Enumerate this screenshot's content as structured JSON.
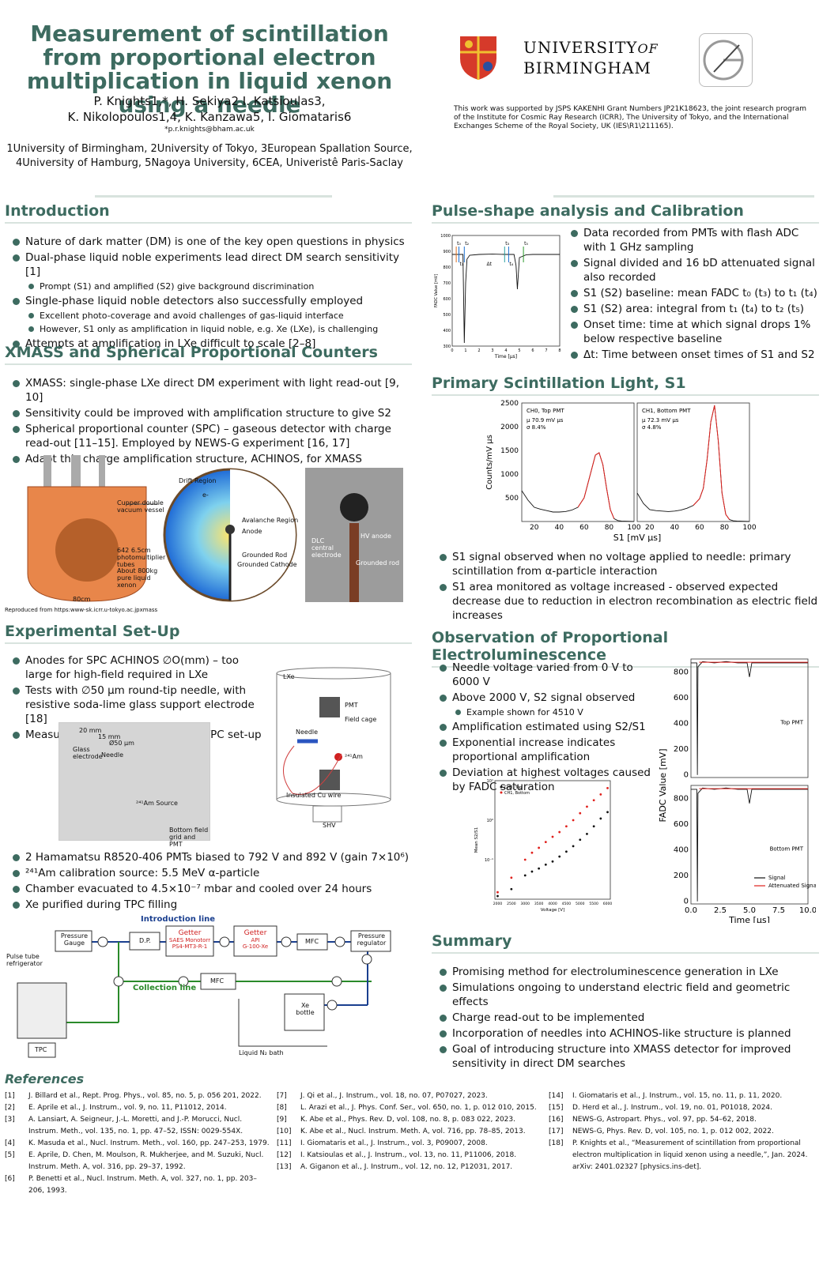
{
  "header": {
    "title": "Measurement of scintillation from proportional electron multiplication in liquid xenon using a needle",
    "authors_line1": "P. Knights1,*, H. Sekiya2 I. Katsioulas3,",
    "authors_line2": "K. Nikolopoulos1,4, K. Kanzawa5, I. Giomataris6",
    "email": "*p.r.knights@bham.ac.uk",
    "affil_line1": "1University of Birmingham, 2University of Tokyo, 3European Spallation Source,",
    "affil_line2": "4University of Hamburg, 5Nagoya University, 6CEA, Univeristê Paris-Saclay",
    "uni_line1": "UNIVERSITY",
    "uni_of": "OF",
    "uni_line2": "BIRMINGHAM",
    "funding": "This work was supported by JSPS KAKENHI Grant Numbers JP21K18623, the joint research program of the Institute for Cosmic Ray Research (ICRR), The University of Tokyo, and the International Exchanges Scheme of the Royal Society, UK (IES\\R1\\211165)."
  },
  "intro": {
    "title": "Introduction",
    "items": [
      "Nature of dark matter (DM) is one of the key open questions in physics",
      "Dual-phase liquid noble experiments lead direct DM search sensitivity [1]",
      "Prompt (S1) and amplified (S2) give background discrimination",
      "Single-phase liquid noble detectors also successfully employed",
      "Excellent photo-coverage and avoid challenges of gas-liquid interface",
      "However, S1 only as amplification in liquid noble, e.g. Xe (LXe), is challenging",
      "Attempts at amplification in LXe difficult to scale [2–8]"
    ]
  },
  "xmass": {
    "title": "XMASS and Spherical Proportional Counters",
    "items": [
      "XMASS: single-phase LXe direct DM experiment with light read-out [9, 10]",
      "Sensitivity could be improved with amplification structure to give S2",
      "Spherical proportional counter (SPC) – gaseous detector with charge read-out [11–15]. Employed by NEWS-G experiment [16, 17]",
      "Adapt this charge amplification structure, ACHINOS, for XMASS"
    ],
    "fig_labels": [
      "Cupper double vacuum vessel",
      "642 6.5cm photomultiplier tubes",
      "About 800kg pure liquid xenon",
      "80cm",
      "Drift Region",
      "Avalanche Region",
      "Anode",
      "Grounded Rod",
      "Grounded Cathode",
      "e-",
      "DLC central electrode",
      "HV anode",
      "Grounded rod"
    ],
    "credit": "Reproduced from https:www-sk.icrr.u-tokyo.ac.jpxmass"
  },
  "setup": {
    "title": "Experimental Set-Up",
    "items1": [
      "Anodes for SPC ACHINOS ∅O(mm) – too large for high-field required in LXe",
      "Tests with ∅50 μm round-tip needle, with resistive soda-lime glass support electrode [18]",
      "Measurements performed in test TPC set-up"
    ],
    "items2": [
      "2 Hamamatsu R8520-406 PMTs biased to 792 V and 892 V (gain 7×10⁶)",
      "²⁴¹Am calibration source: 5.5 MeV α-particle",
      "Chamber evacuated to 4.5×10⁻⁷ mbar and cooled over 24 hours",
      "Xe purified during TPC filling"
    ],
    "photo_labels": [
      "20 mm",
      "15 mm",
      "Ø50 μm",
      "Glass electrode",
      "Needle",
      "²⁴¹Am Source",
      "Bottom field grid and PMT"
    ],
    "tpc_labels": [
      "LXe",
      "PMT",
      "Field cage",
      "Needle",
      "²⁴¹Am",
      "Insulated Cu wire",
      "SHV"
    ],
    "flow": {
      "intro_line": "Introduction line",
      "collection_line": "Collection line",
      "pressure_gauge_1": "Pressure",
      "pressure_gauge_2": "Gauge",
      "dp": "D.P.",
      "getter1_a": "Getter",
      "getter1_b": "SAES Monotorr",
      "getter1_c": "PS4-MT3-R-1",
      "getter2_a": "Getter",
      "getter2_b": "API",
      "getter2_c": "G-100-Xe",
      "mfc": "MFC",
      "mfc2": "MFC",
      "reg_1": "Pressure",
      "reg_2": "regulator",
      "pulse_1": "Pulse tube",
      "pulse_2": "refrigerator",
      "tpc": "TPC",
      "xe_1": "Xe",
      "xe_2": "bottle",
      "ln2": "Liquid N₂ bath"
    }
  },
  "pulse": {
    "title": "Pulse-shape analysis and Calibration",
    "items": [
      "Data recorded from PMTs with flash ADC with 1 GHz sampling",
      "Signal divided and 16 bD attenuated signal also recorded",
      "S1 (S2) baseline: mean FADC t₀ (t₃) to t₁ (t₄)",
      "S1 (S2) area: integral from t₁ (t₄) to t₂ (t₅)",
      "Onset time: time at which signal drops 1% below respective baseline",
      "Δt: Time between onset times of S1 and S2"
    ],
    "chart_data": {
      "type": "line",
      "ylabel": "FADC Value [mV]",
      "xlabel": "Time [μs]",
      "ylim": [
        300,
        1000
      ],
      "xlim": [
        0,
        8
      ],
      "yticks": [
        300,
        400,
        500,
        600,
        700,
        800,
        900,
        1000
      ],
      "xticks": [
        0,
        1,
        2,
        3,
        4,
        5,
        6,
        7,
        8
      ],
      "markers": [
        "t₀",
        "t₁",
        "t₂",
        "Δt",
        "t₃",
        "t₄",
        "t₅"
      ],
      "x": [
        0,
        0.4,
        0.8,
        0.9,
        1.0,
        1.1,
        1.3,
        2.0,
        3.0,
        4.0,
        4.6,
        4.75,
        4.85,
        5.0,
        5.5,
        6.0,
        7.0,
        8.0
      ],
      "y": [
        880,
        880,
        880,
        320,
        700,
        850,
        875,
        880,
        882,
        880,
        880,
        810,
        660,
        860,
        878,
        880,
        880,
        880
      ]
    }
  },
  "s1": {
    "title": "Primary Scintillation Light, S1",
    "items": [
      "S1 signal observed when no voltage applied to needle: primary scintillation from α-particle interaction",
      "S1 area monitored as voltage increased - observed expected decrease due to reduction in electron recombination as electric field increases"
    ],
    "chart_data": {
      "type": "line",
      "ylabel": "Counts/mV μs",
      "xlabel": "S1 [mV μs]",
      "ylim": [
        0,
        2500
      ],
      "xlim": [
        10,
        100
      ],
      "yticks": [
        500,
        1000,
        1500,
        2000,
        2500
      ],
      "xticks": [
        20,
        40,
        60,
        80,
        100
      ],
      "panels": [
        {
          "name": "CH0, Top PMT",
          "mu": "μ  70.9 mV μs",
          "sigma": "σ  8.4%",
          "x": [
            10,
            15,
            20,
            25,
            30,
            35,
            40,
            45,
            50,
            55,
            60,
            63,
            66,
            69,
            72,
            75,
            78,
            81,
            84,
            87,
            90,
            95,
            100
          ],
          "y": [
            650,
            450,
            300,
            260,
            230,
            200,
            200,
            210,
            240,
            300,
            500,
            800,
            1100,
            1400,
            1450,
            1200,
            700,
            250,
            60,
            20,
            10,
            5,
            0
          ]
        },
        {
          "name": "CH1, Bottom PMT",
          "mu": "μ  72.3 mV μs",
          "sigma": "σ  4.8%",
          "x": [
            10,
            15,
            20,
            25,
            30,
            35,
            40,
            45,
            50,
            55,
            60,
            63,
            66,
            69,
            72,
            75,
            78,
            81,
            84,
            87,
            90,
            95,
            100
          ],
          "y": [
            600,
            380,
            250,
            230,
            220,
            210,
            220,
            240,
            280,
            340,
            480,
            700,
            1300,
            2100,
            2450,
            1700,
            600,
            150,
            40,
            15,
            10,
            5,
            0
          ]
        }
      ]
    }
  },
  "el": {
    "title": "Observation of Proportional Electroluminescence",
    "items": [
      "Needle voltage varied from 0 V to 6000 V",
      "Above 2000 V, S2 signal observed",
      "Example shown for 4510 V",
      "Amplification estimated using S2/S1",
      "Exponential increase indicates proportional amplification",
      "Deviation at highest voltages caused by FADC saturation"
    ],
    "ratio_chart": {
      "type": "scatter",
      "ylabel": "Mean S2/S1",
      "xlabel": "Voltage [V]",
      "xticks": [
        2000,
        2500,
        3000,
        3500,
        4000,
        4500,
        5000,
        5500,
        6000
      ],
      "yticks": [
        "10⁻¹",
        "10⁰",
        "10¹"
      ],
      "series": [
        {
          "name": "CH0, Top",
          "color": "#111111",
          "x": [
            2000,
            2500,
            3000,
            3250,
            3500,
            3750,
            4000,
            4250,
            4500,
            4750,
            5000,
            5250,
            5500,
            5750,
            6000
          ],
          "y": [
            0.012,
            0.018,
            0.04,
            0.05,
            0.06,
            0.075,
            0.09,
            0.12,
            0.16,
            0.22,
            0.32,
            0.45,
            0.7,
            1.1,
            1.6
          ]
        },
        {
          "name": "CH1, Bottom",
          "color": "#e0201c",
          "x": [
            2000,
            2500,
            3000,
            3250,
            3500,
            3750,
            4000,
            4250,
            4500,
            4750,
            5000,
            5250,
            5500,
            5750,
            6000
          ],
          "y": [
            0.015,
            0.035,
            0.1,
            0.15,
            0.2,
            0.28,
            0.38,
            0.5,
            0.7,
            1.0,
            1.5,
            2.2,
            3.2,
            4.5,
            6.5
          ]
        }
      ]
    },
    "wave_chart": {
      "type": "line",
      "ylabel": "FADC Value [mV]",
      "xlabel": "Time [μs]",
      "xticks": [
        "0.0",
        "2.5",
        "5.0",
        "7.5",
        "10.0"
      ],
      "yticks": [
        0,
        200,
        400,
        600,
        800
      ],
      "panel_top": "Top PMT",
      "panel_bottom": "Bottom PMT",
      "legend": [
        "Signal",
        "Attenuated Signal"
      ]
    }
  },
  "summary": {
    "title": "Summary",
    "items": [
      "Promising method for electroluminescence generation in LXe",
      "Simulations ongoing to understand electric field and geometric effects",
      "Charge read-out to be implemented",
      "Incorporation of needles into ACHINOS-like structure is planned",
      "Goal of introducing structure into XMASS detector for improved sensitivity in direct DM searches"
    ]
  },
  "refs": {
    "title": "References",
    "col1": [
      [
        "[1]",
        "J. Billard et al., Rept. Prog. Phys., vol. 85, no. 5, p. 056 201, 2022."
      ],
      [
        "[2]",
        "E. Aprile et al., J. Instrum., vol. 9, no. 11, P11012, 2014."
      ],
      [
        "[3]",
        "A. Lansiart, A. Seigneur, J.-L. Moretti, and J.-P. Morucci, Nucl. Instrum. Meth., vol. 135, no. 1, pp. 47–52, ISSN: 0029-554X."
      ],
      [
        "[4]",
        "K. Masuda et al., Nucl. Instrum. Meth., vol. 160, pp. 247–253, 1979."
      ],
      [
        "[5]",
        "E. Aprile, D. Chen, M. Moulson, R. Mukherjee, and M. Suzuki, Nucl. Instrum. Meth. A, vol. 316, pp. 29–37, 1992."
      ],
      [
        "[6]",
        "P. Benetti et al., Nucl. Instrum. Meth. A, vol. 327, no. 1, pp. 203–206, 1993."
      ]
    ],
    "col2": [
      [
        "[7]",
        "J. Qi et al., J. Instrum., vol. 18, no. 07, P07027, 2023."
      ],
      [
        "[8]",
        "L. Arazi et al., J. Phys. Conf. Ser., vol. 650, no. 1, p. 012 010, 2015."
      ],
      [
        "[9]",
        "K. Abe et al., Phys. Rev. D, vol. 108, no. 8, p. 083 022, 2023."
      ],
      [
        "[10]",
        "K. Abe et al., Nucl. Instrum. Meth. A, vol. 716, pp. 78–85, 2013."
      ],
      [
        "[11]",
        "I. Giomataris et al., J. Instrum., vol. 3, P09007, 2008."
      ],
      [
        "[12]",
        "I. Katsioulas et al., J. Instrum., vol. 13, no. 11, P11006, 2018."
      ],
      [
        "[13]",
        "A. Giganon et al., J. Instrum., vol. 12, no. 12, P12031, 2017."
      ]
    ],
    "col3": [
      [
        "[14]",
        "I. Giomataris et al., J. Instrum., vol. 15, no. 11, p. 11, 2020."
      ],
      [
        "[15]",
        "D. Herd et al., J. Instrum., vol. 19, no. 01, P01018, 2024."
      ],
      [
        "[16]",
        "NEWS-G, Astropart. Phys., vol. 97, pp. 54–62, 2018."
      ],
      [
        "[17]",
        "NEWS-G, Phys. Rev. D, vol. 105, no. 1, p. 012 002, 2022."
      ],
      [
        "[18]",
        "P. Knights et al., “Measurement of scintillation from proportional electron multiplication in liquid xenon using a needle,”, Jan. 2024. arXiv: 2401.02327 [physics.ins-det]."
      ]
    ]
  }
}
